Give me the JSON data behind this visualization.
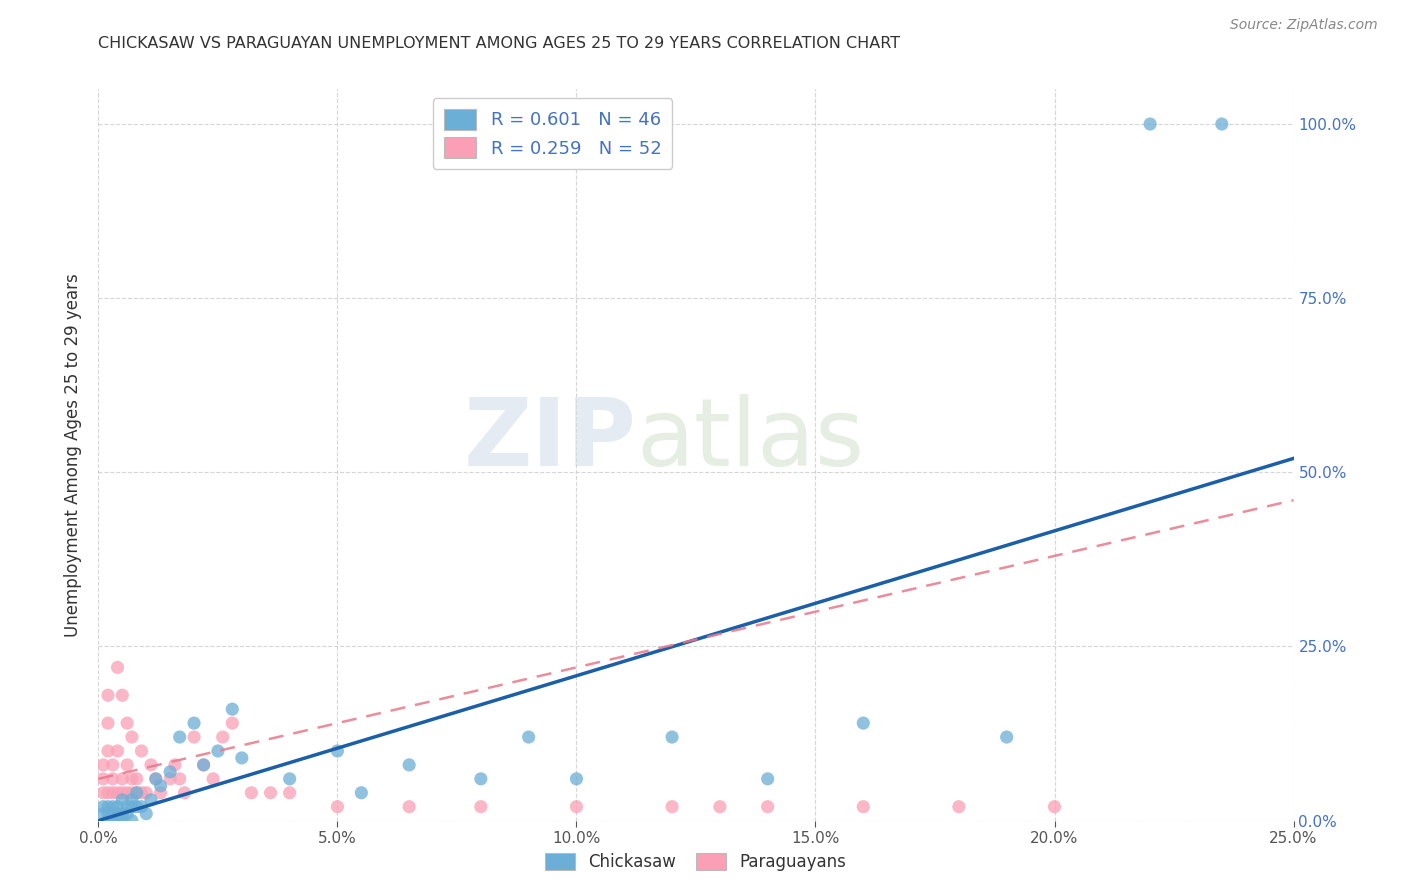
{
  "title": "CHICKASAW VS PARAGUAYAN UNEMPLOYMENT AMONG AGES 25 TO 29 YEARS CORRELATION CHART",
  "source": "Source: ZipAtlas.com",
  "ylabel": "Unemployment Among Ages 25 to 29 years",
  "xlabel_ticks": [
    "0.0%",
    "5.0%",
    "10.0%",
    "15.0%",
    "20.0%",
    "25.0%"
  ],
  "ylabel_ticks": [
    "0.0%",
    "25.0%",
    "50.0%",
    "75.0%",
    "100.0%"
  ],
  "xlim": [
    0.0,
    0.25
  ],
  "ylim": [
    0.0,
    1.05
  ],
  "legend1_R": "0.601",
  "legend1_N": "46",
  "legend2_R": "0.259",
  "legend2_N": "52",
  "blue_color": "#6baed6",
  "pink_color": "#fa9fb5",
  "blue_line_color": "#1a5fa8",
  "pink_line_color": "#e8788a",
  "watermark_zip": "ZIP",
  "watermark_atlas": "atlas",
  "background_color": "#ffffff",
  "grid_color": "#cccccc",
  "blue_line_x0": 0.0,
  "blue_line_y0": 0.0,
  "blue_line_x1": 0.25,
  "blue_line_y1": 0.52,
  "pink_line_x0": 0.0,
  "pink_line_y0": 0.06,
  "pink_line_x1": 0.25,
  "pink_line_y1": 0.46,
  "blue_scatter_x": [
    0.001,
    0.001,
    0.002,
    0.002,
    0.002,
    0.003,
    0.003,
    0.003,
    0.004,
    0.004,
    0.004,
    0.005,
    0.005,
    0.005,
    0.006,
    0.006,
    0.007,
    0.007,
    0.007,
    0.008,
    0.008,
    0.009,
    0.01,
    0.011,
    0.012,
    0.013,
    0.015,
    0.017,
    0.02,
    0.022,
    0.025,
    0.028,
    0.03,
    0.04,
    0.05,
    0.055,
    0.065,
    0.08,
    0.09,
    0.1,
    0.12,
    0.14,
    0.16,
    0.19,
    0.22,
    0.235
  ],
  "blue_scatter_y": [
    0.01,
    0.02,
    0.0,
    0.01,
    0.02,
    0.0,
    0.01,
    0.02,
    0.0,
    0.01,
    0.02,
    0.0,
    0.01,
    0.03,
    0.01,
    0.02,
    0.0,
    0.02,
    0.03,
    0.02,
    0.04,
    0.02,
    0.01,
    0.03,
    0.06,
    0.05,
    0.07,
    0.12,
    0.14,
    0.08,
    0.1,
    0.16,
    0.09,
    0.06,
    0.1,
    0.04,
    0.08,
    0.06,
    0.12,
    0.06,
    0.12,
    0.06,
    0.14,
    0.12,
    1.0,
    1.0
  ],
  "pink_scatter_x": [
    0.001,
    0.001,
    0.001,
    0.002,
    0.002,
    0.002,
    0.002,
    0.003,
    0.003,
    0.003,
    0.004,
    0.004,
    0.004,
    0.005,
    0.005,
    0.005,
    0.006,
    0.006,
    0.006,
    0.007,
    0.007,
    0.007,
    0.008,
    0.008,
    0.009,
    0.009,
    0.01,
    0.011,
    0.012,
    0.013,
    0.015,
    0.016,
    0.017,
    0.018,
    0.02,
    0.022,
    0.024,
    0.026,
    0.028,
    0.032,
    0.036,
    0.04,
    0.05,
    0.065,
    0.08,
    0.1,
    0.12,
    0.13,
    0.14,
    0.16,
    0.18,
    0.2
  ],
  "pink_scatter_y": [
    0.04,
    0.06,
    0.08,
    0.04,
    0.1,
    0.14,
    0.18,
    0.04,
    0.06,
    0.08,
    0.04,
    0.1,
    0.22,
    0.04,
    0.06,
    0.18,
    0.04,
    0.08,
    0.14,
    0.04,
    0.06,
    0.12,
    0.04,
    0.06,
    0.04,
    0.1,
    0.04,
    0.08,
    0.06,
    0.04,
    0.06,
    0.08,
    0.06,
    0.04,
    0.12,
    0.08,
    0.06,
    0.12,
    0.14,
    0.04,
    0.04,
    0.04,
    0.02,
    0.02,
    0.02,
    0.02,
    0.02,
    0.02,
    0.02,
    0.02,
    0.02,
    0.02
  ]
}
